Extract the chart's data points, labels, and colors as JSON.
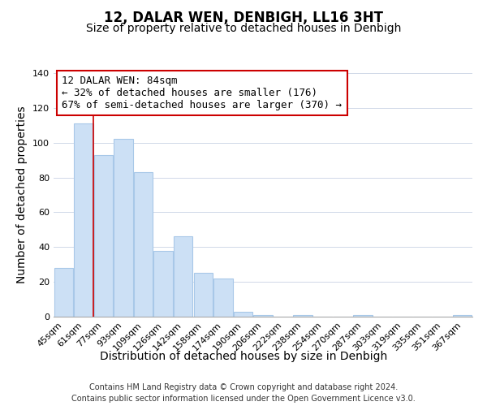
{
  "title": "12, DALAR WEN, DENBIGH, LL16 3HT",
  "subtitle": "Size of property relative to detached houses in Denbigh",
  "xlabel": "Distribution of detached houses by size in Denbigh",
  "ylabel": "Number of detached properties",
  "bar_labels": [
    "45sqm",
    "61sqm",
    "77sqm",
    "93sqm",
    "109sqm",
    "126sqm",
    "142sqm",
    "158sqm",
    "174sqm",
    "190sqm",
    "206sqm",
    "222sqm",
    "238sqm",
    "254sqm",
    "270sqm",
    "287sqm",
    "303sqm",
    "319sqm",
    "335sqm",
    "351sqm",
    "367sqm"
  ],
  "bar_values": [
    28,
    111,
    93,
    102,
    83,
    38,
    46,
    25,
    22,
    3,
    1,
    0,
    1,
    0,
    0,
    1,
    0,
    0,
    0,
    0,
    1
  ],
  "bar_color": "#cce0f5",
  "bar_edge_color": "#a8c8e8",
  "red_line_between_index": 1,
  "annotation_box_text": "12 DALAR WEN: 84sqm\n← 32% of detached houses are smaller (176)\n67% of semi-detached houses are larger (370) →",
  "ylim": [
    0,
    140
  ],
  "yticks": [
    0,
    20,
    40,
    60,
    80,
    100,
    120,
    140
  ],
  "footer_line1": "Contains HM Land Registry data © Crown copyright and database right 2024.",
  "footer_line2": "Contains public sector information licensed under the Open Government Licence v3.0.",
  "title_fontsize": 12,
  "subtitle_fontsize": 10,
  "axis_label_fontsize": 10,
  "tick_fontsize": 8,
  "annotation_fontsize": 9,
  "footer_fontsize": 7
}
